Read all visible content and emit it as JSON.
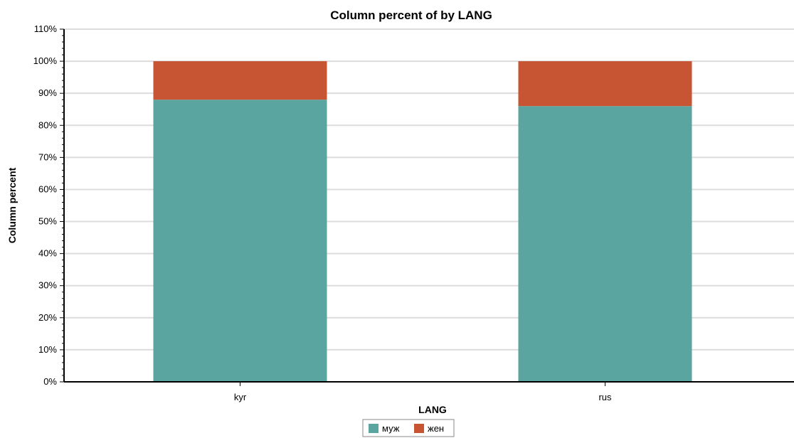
{
  "chart_data": {
    "type": "bar",
    "stacked": true,
    "title": "Column percent of  by LANG",
    "xlabel": "LANG",
    "ylabel": "Column percent",
    "categories": [
      "kyr",
      "rus"
    ],
    "series": [
      {
        "name": "муж",
        "values": [
          88,
          86
        ],
        "color": "#5ba5a0"
      },
      {
        "name": "жен",
        "values": [
          12,
          14
        ],
        "color": "#c75433"
      }
    ],
    "ylim": [
      0,
      110
    ],
    "yticks": [
      "0%",
      "10%",
      "20%",
      "30%",
      "40%",
      "50%",
      "60%",
      "70%",
      "80%",
      "90%",
      "100%",
      "110%"
    ],
    "grid": true,
    "legend_position": "bottom-center"
  }
}
